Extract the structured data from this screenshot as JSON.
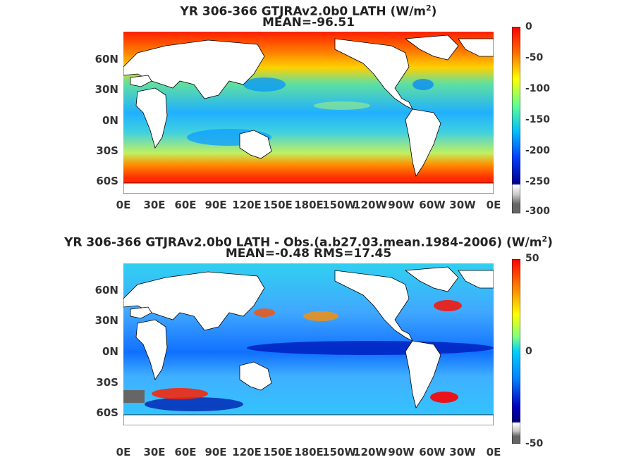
{
  "panels": [
    {
      "title_line1": "YR 306-366 GTJRAv2.0b0  LATH (W/m",
      "title_sup": "2",
      "title_close": ")",
      "title_line2": "MEAN=-96.51",
      "colorbar_ticks": [
        "0",
        "-50",
        "-100",
        "-150",
        "-200",
        "-250",
        "-300"
      ],
      "colorbar_range": [
        -300,
        0
      ]
    },
    {
      "title_line1": "YR 306-366 GTJRAv2.0b0 LATH - Obs.(a.b27.03.mean.1984-2006) (W/m",
      "title_sup": "2",
      "title_close": ")",
      "title_line2": "MEAN=-0.48 RMS=17.45",
      "colorbar_ticks": [
        "50",
        "0",
        "-50"
      ],
      "colorbar_range": [
        -50,
        50
      ]
    }
  ],
  "lat_labels": [
    "60N",
    "30N",
    "0N",
    "30S",
    "60S"
  ],
  "lon_labels": [
    "0E",
    "30E",
    "60E",
    "90E",
    "120E",
    "150E",
    "180E",
    "150W",
    "120W",
    "90W",
    "60W",
    "30W",
    "0E"
  ],
  "colors": {
    "land": "#ffffff",
    "coast": "#000000",
    "missing": "#666666",
    "jet_red": "#ff0000",
    "jet_blue": "#0000c0"
  }
}
